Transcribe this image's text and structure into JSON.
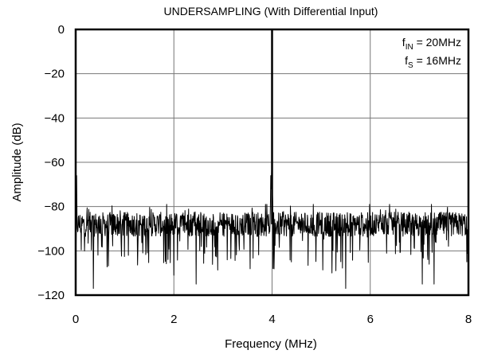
{
  "chart_data": {
    "type": "line",
    "title": "UNDERSAMPLING (With Differential Input)",
    "xlabel": "Frequency (MHz)",
    "ylabel": "Amplitude (dB)",
    "xlim": [
      0,
      8
    ],
    "ylim": [
      -120,
      0
    ],
    "x_ticks": [
      0,
      2,
      4,
      6,
      8
    ],
    "y_ticks": [
      0,
      -20,
      -40,
      -60,
      -80,
      -100,
      -120
    ],
    "x_tick_labels": [
      "0",
      "2",
      "4",
      "6",
      "8"
    ],
    "y_tick_labels": [
      "0",
      "−20",
      "−40",
      "−60",
      "−80",
      "−100",
      "−120"
    ],
    "grid": true,
    "annotations": [
      {
        "main": "f",
        "sub": "IN",
        "rest": " = 20MHz"
      },
      {
        "main": "f",
        "sub": "S",
        "rest": " = 16MHz"
      }
    ],
    "series": [
      {
        "description": "FFT spectrum: noise floor about -88 dB (spread -80 to -117 dB), main tone at 4 MHz reaching 0 dB, DC bin about -23 dB, tone near 3.97 MHz about -66 dB, spur at 8 MHz about -55 dB",
        "noise_floor_db": -88,
        "peaks": [
          {
            "x": 0.0,
            "y": -23
          },
          {
            "x": 0.02,
            "y": -66
          },
          {
            "x": 3.97,
            "y": -66
          },
          {
            "x": 4.0,
            "y": 0
          },
          {
            "x": 8.0,
            "y": -55
          }
        ],
        "dips": [
          {
            "x": 0.36,
            "y": -117
          },
          {
            "x": 2.0,
            "y": -111
          },
          {
            "x": 2.45,
            "y": -115
          },
          {
            "x": 5.22,
            "y": -110
          },
          {
            "x": 5.3,
            "y": -109
          },
          {
            "x": 5.5,
            "y": -117
          },
          {
            "x": 7.06,
            "y": -115
          },
          {
            "x": 7.3,
            "y": -115
          }
        ]
      }
    ]
  }
}
